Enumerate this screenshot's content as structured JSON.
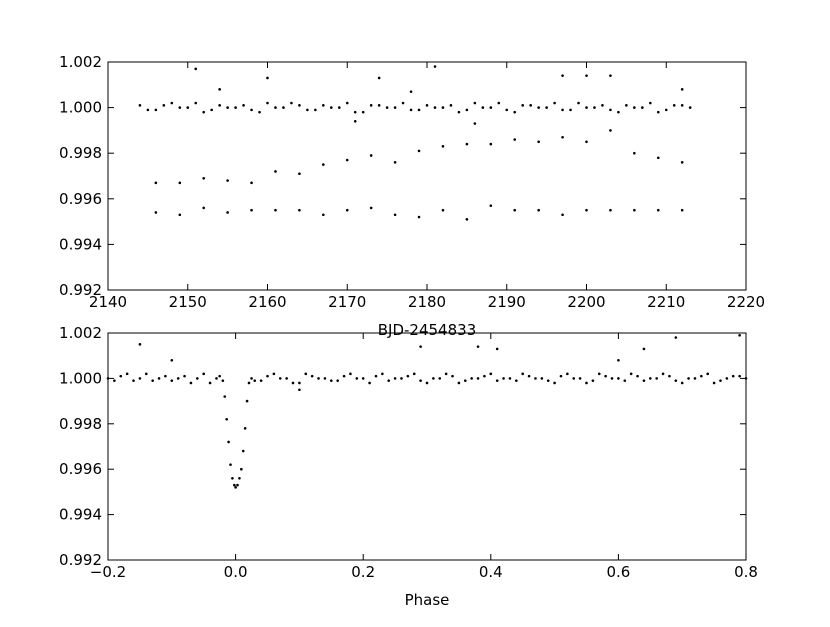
{
  "chart_data": [
    {
      "type": "scatter",
      "xlabel": "BJD-2454833",
      "color": "#000000",
      "xlim": [
        2140,
        2220
      ],
      "ylim": [
        0.992,
        1.002
      ],
      "xticks": [
        2140,
        2150,
        2160,
        2170,
        2180,
        2190,
        2200,
        2210,
        2220
      ],
      "yticks": [
        0.992,
        0.994,
        0.996,
        0.998,
        {
          "value": 1.0,
          "label": "1.000"
        },
        1.002
      ],
      "x": [
        2144,
        2146,
        2148,
        2150,
        2152,
        2154,
        2156,
        2158,
        2160,
        2162,
        2164,
        2166,
        2168,
        2170,
        2172,
        2174,
        2176,
        2178,
        2180,
        2182,
        2184,
        2186,
        2188,
        2190,
        2192,
        2194,
        2196,
        2198,
        2200,
        2202,
        2204,
        2206,
        2208,
        2210,
        2212,
        2213,
        2145,
        2147,
        2149,
        2151,
        2153,
        2155,
        2157,
        2159,
        2161,
        2163,
        2165,
        2167,
        2169,
        2171,
        2173,
        2175,
        2177,
        2179,
        2181,
        2183,
        2185,
        2187,
        2189,
        2191,
        2193,
        2195,
        2197,
        2199,
        2201,
        2203,
        2205,
        2207,
        2209,
        2211,
        2151,
        2160,
        2174,
        2181,
        2197,
        2200,
        2203,
        2212,
        2171,
        2186,
        2154,
        2178,
        2146,
        2146,
        2149,
        2149,
        2152,
        2152,
        2155,
        2155,
        2158,
        2158,
        2161,
        2161,
        2164,
        2164,
        2167,
        2167,
        2170,
        2170,
        2173,
        2173,
        2176,
        2176,
        2179,
        2179,
        2182,
        2182,
        2185,
        2185,
        2188,
        2188,
        2191,
        2191,
        2194,
        2194,
        2197,
        2197,
        2200,
        2200,
        2203,
        2203,
        2206,
        2206,
        2209,
        2209,
        2212,
        2212
      ],
      "values": [
        1.0001,
        0.9999,
        1.0002,
        1.0,
        0.9998,
        1.0001,
        1.0,
        0.9999,
        1.0002,
        1.0,
        1.0001,
        0.9999,
        1.0,
        1.0002,
        0.9998,
        1.0001,
        1.0,
        0.9999,
        1.0001,
        1.0,
        0.9998,
        1.0002,
        1.0,
        0.9999,
        1.0001,
        1.0,
        1.0002,
        0.9999,
        1.0,
        1.0001,
        0.9998,
        1.0,
        1.0002,
        0.9999,
        1.0001,
        1.0,
        0.9999,
        1.0001,
        1.0,
        1.0002,
        0.9999,
        1.0,
        1.0001,
        0.9998,
        1.0,
        1.0002,
        0.9999,
        1.0001,
        1.0,
        0.9998,
        1.0001,
        1.0,
        1.0002,
        0.9999,
        1.0,
        1.0001,
        0.9999,
        1.0,
        1.0002,
        0.9998,
        1.0001,
        1.0,
        0.9999,
        1.0002,
        1.0,
        0.9999,
        1.0001,
        1.0,
        0.9998,
        1.0001,
        1.0017,
        1.0013,
        1.0013,
        1.0018,
        1.0014,
        1.0014,
        1.0014,
        1.0008,
        0.9994,
        0.9993,
        1.0008,
        1.0007,
        0.9967,
        0.9954,
        0.9967,
        0.9953,
        0.9969,
        0.9956,
        0.9968,
        0.9954,
        0.9967,
        0.9955,
        0.9972,
        0.9955,
        0.9971,
        0.9955,
        0.9975,
        0.9953,
        0.9977,
        0.9955,
        0.9979,
        0.9956,
        0.9976,
        0.9953,
        0.9981,
        0.9952,
        0.9983,
        0.9955,
        0.9984,
        0.9951,
        0.9984,
        0.9957,
        0.9986,
        0.9955,
        0.9985,
        0.9955,
        0.9987,
        0.9953,
        0.9985,
        0.9955,
        0.999,
        0.9955,
        0.998,
        0.9955,
        0.9978,
        0.9955,
        0.9976,
        0.9955
      ]
    },
    {
      "type": "scatter",
      "xlabel": "Phase",
      "color": "#000000",
      "xlim": [
        -0.2,
        0.8
      ],
      "ylim": [
        0.992,
        1.002
      ],
      "xticks": [
        {
          "value": -0.2,
          "label": "−0.2"
        },
        {
          "value": 0,
          "label": "0.0"
        },
        0.2,
        0.4,
        0.6,
        0.8
      ],
      "yticks": [
        0.992,
        0.994,
        0.996,
        0.998,
        {
          "value": 1.0,
          "label": "1.000"
        },
        1.002
      ],
      "x": [
        -0.2,
        -0.18,
        -0.16,
        -0.14,
        -0.12,
        -0.1,
        -0.08,
        -0.06,
        -0.04,
        -0.025,
        0.025,
        0.04,
        0.06,
        0.08,
        0.1,
        0.12,
        0.14,
        0.16,
        0.18,
        0.2,
        0.22,
        0.24,
        0.26,
        0.28,
        0.3,
        0.32,
        0.34,
        0.36,
        0.38,
        0.4,
        0.42,
        0.44,
        0.46,
        0.48,
        0.5,
        0.52,
        0.54,
        0.56,
        0.58,
        0.6,
        0.62,
        0.64,
        0.66,
        0.68,
        0.7,
        0.72,
        0.74,
        0.76,
        0.78,
        0.8,
        -0.19,
        -0.17,
        -0.15,
        -0.13,
        -0.11,
        -0.09,
        -0.07,
        -0.05,
        -0.03,
        0.03,
        0.05,
        0.07,
        0.09,
        0.11,
        0.13,
        0.15,
        0.17,
        0.19,
        0.21,
        0.23,
        0.25,
        0.27,
        0.29,
        0.31,
        0.33,
        0.35,
        0.37,
        0.39,
        0.41,
        0.43,
        0.45,
        0.47,
        0.49,
        0.51,
        0.53,
        0.55,
        0.57,
        0.59,
        0.61,
        0.63,
        0.65,
        0.67,
        0.69,
        0.71,
        0.73,
        0.75,
        0.77,
        0.79,
        -0.02,
        -0.017,
        -0.014,
        -0.011,
        -0.008,
        -0.005,
        -0.002,
        0.0,
        0.003,
        0.006,
        0.009,
        0.012,
        0.015,
        0.018,
        0.021,
        -0.15,
        0.29,
        0.38,
        0.41,
        0.64,
        0.69,
        0.79,
        0.1,
        -0.1,
        0.6
      ],
      "values": [
        1.0,
        1.0001,
        0.9999,
        1.0002,
        1.0,
        0.9999,
        1.0001,
        1.0,
        0.9998,
        1.0001,
        1.0,
        0.9999,
        1.0002,
        1.0,
        0.9998,
        1.0001,
        1.0,
        0.9999,
        1.0002,
        1.0,
        1.0001,
        0.9999,
        1.0,
        1.0002,
        0.9998,
        1.0,
        1.0001,
        0.9999,
        1.0,
        1.0002,
        1.0,
        0.9999,
        1.0001,
        1.0,
        0.9998,
        1.0002,
        1.0,
        0.9999,
        1.0001,
        1.0,
        1.0002,
        0.9999,
        1.0,
        1.0001,
        0.9998,
        1.0,
        1.0002,
        0.9999,
        1.0001,
        1.0,
        0.9999,
        1.0002,
        1.0,
        0.9999,
        1.0001,
        1.0,
        0.9998,
        1.0002,
        1.0,
        0.9999,
        1.0001,
        1.0,
        0.9998,
        1.0002,
        1.0,
        0.9999,
        1.0001,
        1.0,
        0.9998,
        1.0002,
        1.0,
        1.0001,
        0.9999,
        1.0,
        1.0002,
        0.9998,
        1.0,
        1.0001,
        0.9999,
        1.0,
        1.0002,
        1.0,
        0.9999,
        1.0001,
        1.0,
        0.9998,
        1.0002,
        1.0,
        0.9999,
        1.0001,
        1.0,
        1.0002,
        0.9999,
        1.0,
        1.0001,
        0.9998,
        1.0,
        1.0001,
        0.9999,
        0.9992,
        0.9982,
        0.9972,
        0.9962,
        0.9956,
        0.9953,
        0.9952,
        0.9953,
        0.9956,
        0.996,
        0.9968,
        0.9978,
        0.999,
        0.9998,
        1.0015,
        1.0014,
        1.0014,
        1.0013,
        1.0013,
        1.0018,
        1.0019,
        0.9995,
        1.0008,
        1.0008
      ]
    }
  ]
}
